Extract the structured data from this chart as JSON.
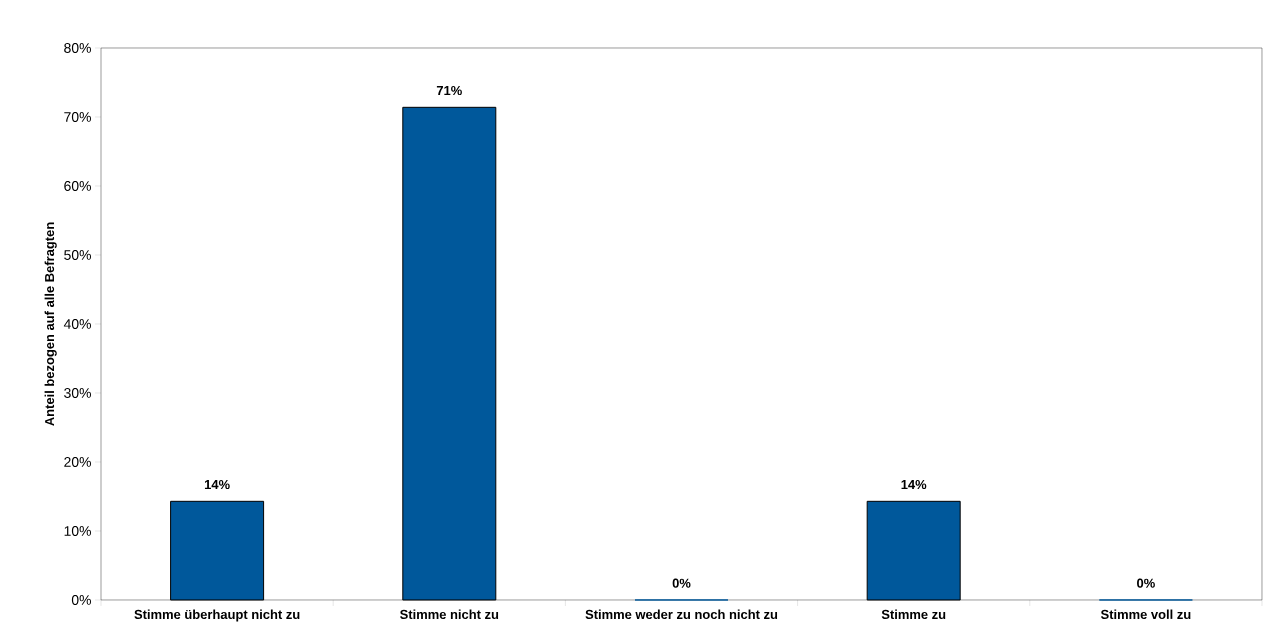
{
  "chart_data": {
    "type": "bar",
    "ylabel": "Anteil bezogen auf alle Befragten",
    "categories": [
      "Stimme überhaupt nicht zu",
      "Stimme nicht zu",
      "Stimme weder zu noch nicht zu",
      "Stimme zu",
      "Stimme voll zu"
    ],
    "values": [
      14.3,
      71.4,
      0,
      14.3,
      0
    ],
    "value_labels": [
      "14%",
      "71%",
      "0%",
      "14%",
      "0%"
    ],
    "color": "#00589b",
    "ylim": [
      0,
      80
    ],
    "yticks": [
      {
        "value": 0,
        "label": "0%"
      },
      {
        "value": 10,
        "label": "10%"
      },
      {
        "value": 20,
        "label": "20%"
      },
      {
        "value": 30,
        "label": "30%"
      },
      {
        "value": 40,
        "label": "40%"
      },
      {
        "value": 50,
        "label": "50%"
      },
      {
        "value": 60,
        "label": "60%"
      },
      {
        "value": 70,
        "label": "70%"
      },
      {
        "value": 80,
        "label": "80%"
      }
    ],
    "grid": false
  }
}
